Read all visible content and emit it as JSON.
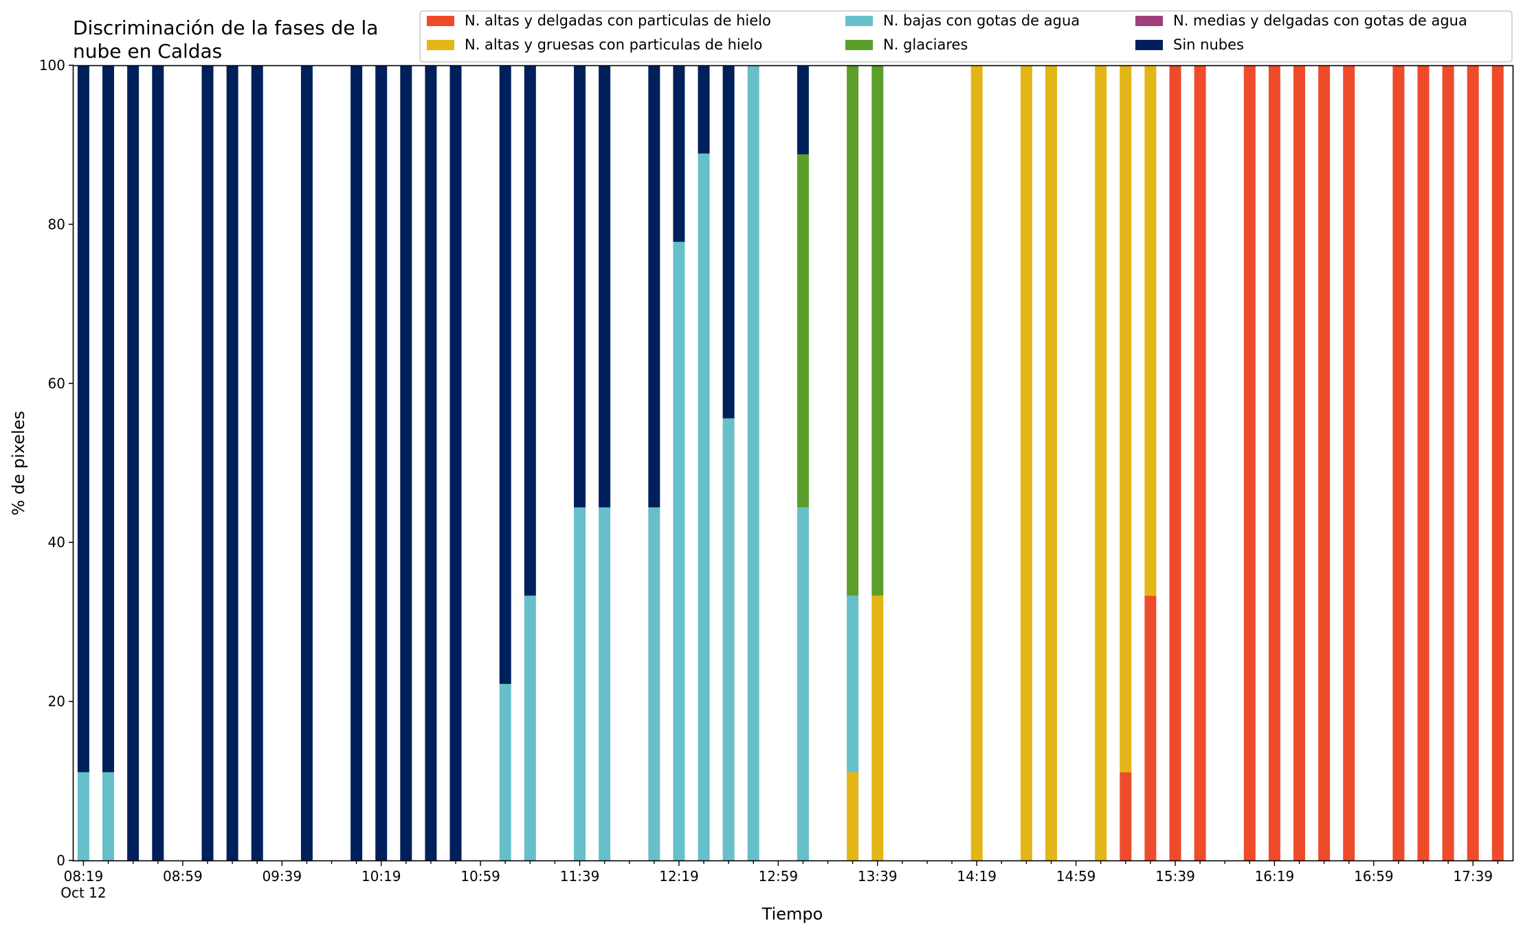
{
  "chart_data": {
    "type": "bar",
    "stacked": true,
    "title_lines": [
      "Discriminación de la fases de la",
      "nube en Caldas"
    ],
    "xlabel": "Tiempo",
    "ylabel": "% de pixeles",
    "ylim": [
      0,
      100
    ],
    "yticks": [
      "0",
      "20",
      "40",
      "60",
      "80",
      "100"
    ],
    "x_range": [
      "08:15",
      "17:55"
    ],
    "xtick_times": [
      "08:19",
      "08:59",
      "09:39",
      "10:19",
      "10:59",
      "11:39",
      "12:19",
      "12:59",
      "13:39",
      "14:19",
      "14:59",
      "15:39",
      "16:19",
      "16:59",
      "17:39"
    ],
    "xtick_date": "Oct 12",
    "grid": false,
    "legend_position": "top-right",
    "series": [
      {
        "key": "altas_delgadas",
        "name": "N. altas y delgadas con particulas de hielo",
        "color": "#ee4b2b"
      },
      {
        "key": "altas_gruesas",
        "name": "N. altas y gruesas con particulas de hielo",
        "color": "#e3b617"
      },
      {
        "key": "bajas",
        "name": "N. bajas con gotas de agua",
        "color": "#67bfca"
      },
      {
        "key": "glaciares",
        "name": "N. glaciares",
        "color": "#5b9e2a"
      },
      {
        "key": "medias",
        "name": "N. medias y delgadas con gotas de agua",
        "color": "#a0407a"
      },
      {
        "key": "sin_nubes",
        "name": "Sin nubes",
        "color": "#00205b"
      }
    ],
    "bars": [
      {
        "time": "08:19",
        "altas_delgadas": 0,
        "altas_gruesas": 0,
        "bajas": 11.1,
        "glaciares": 0,
        "medias": 0,
        "sin_nubes": 88.9
      },
      {
        "time": "08:29",
        "altas_delgadas": 0,
        "altas_gruesas": 0,
        "bajas": 11.1,
        "glaciares": 0,
        "medias": 0,
        "sin_nubes": 88.9
      },
      {
        "time": "08:39",
        "altas_delgadas": 0,
        "altas_gruesas": 0,
        "bajas": 0,
        "glaciares": 0,
        "medias": 0,
        "sin_nubes": 100
      },
      {
        "time": "08:49",
        "altas_delgadas": 0,
        "altas_gruesas": 0,
        "bajas": 0,
        "glaciares": 0,
        "medias": 0,
        "sin_nubes": 100
      },
      {
        "time": "09:09",
        "altas_delgadas": 0,
        "altas_gruesas": 0,
        "bajas": 0,
        "glaciares": 0,
        "medias": 0,
        "sin_nubes": 100
      },
      {
        "time": "09:19",
        "altas_delgadas": 0,
        "altas_gruesas": 0,
        "bajas": 0,
        "glaciares": 0,
        "medias": 0,
        "sin_nubes": 100
      },
      {
        "time": "09:29",
        "altas_delgadas": 0,
        "altas_gruesas": 0,
        "bajas": 0,
        "glaciares": 0,
        "medias": 0,
        "sin_nubes": 100
      },
      {
        "time": "09:49",
        "altas_delgadas": 0,
        "altas_gruesas": 0,
        "bajas": 0,
        "glaciares": 0,
        "medias": 0,
        "sin_nubes": 100
      },
      {
        "time": "10:09",
        "altas_delgadas": 0,
        "altas_gruesas": 0,
        "bajas": 0,
        "glaciares": 0,
        "medias": 0,
        "sin_nubes": 100
      },
      {
        "time": "10:19",
        "altas_delgadas": 0,
        "altas_gruesas": 0,
        "bajas": 0,
        "glaciares": 0,
        "medias": 0,
        "sin_nubes": 100
      },
      {
        "time": "10:29",
        "altas_delgadas": 0,
        "altas_gruesas": 0,
        "bajas": 0,
        "glaciares": 0,
        "medias": 0,
        "sin_nubes": 100
      },
      {
        "time": "10:39",
        "altas_delgadas": 0,
        "altas_gruesas": 0,
        "bajas": 0,
        "glaciares": 0,
        "medias": 0,
        "sin_nubes": 100
      },
      {
        "time": "10:49",
        "altas_delgadas": 0,
        "altas_gruesas": 0,
        "bajas": 0,
        "glaciares": 0,
        "medias": 0,
        "sin_nubes": 100
      },
      {
        "time": "11:09",
        "altas_delgadas": 0,
        "altas_gruesas": 0,
        "bajas": 22.2,
        "glaciares": 0,
        "medias": 0,
        "sin_nubes": 77.8
      },
      {
        "time": "11:19",
        "altas_delgadas": 0,
        "altas_gruesas": 0,
        "bajas": 33.3,
        "glaciares": 0,
        "medias": 0,
        "sin_nubes": 66.7
      },
      {
        "time": "11:39",
        "altas_delgadas": 0,
        "altas_gruesas": 0,
        "bajas": 44.4,
        "glaciares": 0,
        "medias": 0,
        "sin_nubes": 55.6
      },
      {
        "time": "11:49",
        "altas_delgadas": 0,
        "altas_gruesas": 0,
        "bajas": 44.4,
        "glaciares": 0,
        "medias": 0,
        "sin_nubes": 55.6
      },
      {
        "time": "12:09",
        "altas_delgadas": 0,
        "altas_gruesas": 0,
        "bajas": 44.4,
        "glaciares": 0,
        "medias": 0,
        "sin_nubes": 55.6
      },
      {
        "time": "12:19",
        "altas_delgadas": 0,
        "altas_gruesas": 0,
        "bajas": 77.8,
        "glaciares": 0,
        "medias": 0,
        "sin_nubes": 22.2
      },
      {
        "time": "12:29",
        "altas_delgadas": 0,
        "altas_gruesas": 0,
        "bajas": 88.9,
        "glaciares": 0,
        "medias": 0,
        "sin_nubes": 11.1
      },
      {
        "time": "12:39",
        "altas_delgadas": 0,
        "altas_gruesas": 0,
        "bajas": 55.6,
        "glaciares": 0,
        "medias": 0,
        "sin_nubes": 44.4
      },
      {
        "time": "12:49",
        "altas_delgadas": 0,
        "altas_gruesas": 0,
        "bajas": 100,
        "glaciares": 0,
        "medias": 0,
        "sin_nubes": 0
      },
      {
        "time": "13:09",
        "altas_delgadas": 0,
        "altas_gruesas": 0,
        "bajas": 44.4,
        "glaciares": 44.4,
        "medias": 0,
        "sin_nubes": 11.1
      },
      {
        "time": "13:29",
        "altas_delgadas": 0,
        "altas_gruesas": 11.1,
        "bajas": 22.2,
        "glaciares": 66.7,
        "medias": 0,
        "sin_nubes": 0
      },
      {
        "time": "13:39",
        "altas_delgadas": 0,
        "altas_gruesas": 33.3,
        "bajas": 0,
        "glaciares": 66.7,
        "medias": 0,
        "sin_nubes": 0
      },
      {
        "time": "14:19",
        "altas_delgadas": 0,
        "altas_gruesas": 100,
        "bajas": 0,
        "glaciares": 0,
        "medias": 0,
        "sin_nubes": 0
      },
      {
        "time": "14:39",
        "altas_delgadas": 0,
        "altas_gruesas": 100,
        "bajas": 0,
        "glaciares": 0,
        "medias": 0,
        "sin_nubes": 0
      },
      {
        "time": "14:49",
        "altas_delgadas": 0,
        "altas_gruesas": 100,
        "bajas": 0,
        "glaciares": 0,
        "medias": 0,
        "sin_nubes": 0
      },
      {
        "time": "15:09",
        "altas_delgadas": 0,
        "altas_gruesas": 100,
        "bajas": 0,
        "glaciares": 0,
        "medias": 0,
        "sin_nubes": 0
      },
      {
        "time": "15:19",
        "altas_delgadas": 11.1,
        "altas_gruesas": 88.9,
        "bajas": 0,
        "glaciares": 0,
        "medias": 0,
        "sin_nubes": 0
      },
      {
        "time": "15:29",
        "altas_delgadas": 33.3,
        "altas_gruesas": 66.7,
        "bajas": 0,
        "glaciares": 0,
        "medias": 0,
        "sin_nubes": 0
      },
      {
        "time": "15:39",
        "altas_delgadas": 100,
        "altas_gruesas": 0,
        "bajas": 0,
        "glaciares": 0,
        "medias": 0,
        "sin_nubes": 0
      },
      {
        "time": "15:49",
        "altas_delgadas": 100,
        "altas_gruesas": 0,
        "bajas": 0,
        "glaciares": 0,
        "medias": 0,
        "sin_nubes": 0
      },
      {
        "time": "16:09",
        "altas_delgadas": 100,
        "altas_gruesas": 0,
        "bajas": 0,
        "glaciares": 0,
        "medias": 0,
        "sin_nubes": 0
      },
      {
        "time": "16:19",
        "altas_delgadas": 100,
        "altas_gruesas": 0,
        "bajas": 0,
        "glaciares": 0,
        "medias": 0,
        "sin_nubes": 0
      },
      {
        "time": "16:29",
        "altas_delgadas": 100,
        "altas_gruesas": 0,
        "bajas": 0,
        "glaciares": 0,
        "medias": 0,
        "sin_nubes": 0
      },
      {
        "time": "16:39",
        "altas_delgadas": 100,
        "altas_gruesas": 0,
        "bajas": 0,
        "glaciares": 0,
        "medias": 0,
        "sin_nubes": 0
      },
      {
        "time": "16:49",
        "altas_delgadas": 100,
        "altas_gruesas": 0,
        "bajas": 0,
        "glaciares": 0,
        "medias": 0,
        "sin_nubes": 0
      },
      {
        "time": "17:09",
        "altas_delgadas": 100,
        "altas_gruesas": 0,
        "bajas": 0,
        "glaciares": 0,
        "medias": 0,
        "sin_nubes": 0
      },
      {
        "time": "17:19",
        "altas_delgadas": 100,
        "altas_gruesas": 0,
        "bajas": 0,
        "glaciares": 0,
        "medias": 0,
        "sin_nubes": 0
      },
      {
        "time": "17:29",
        "altas_delgadas": 100,
        "altas_gruesas": 0,
        "bajas": 0,
        "glaciares": 0,
        "medias": 0,
        "sin_nubes": 0
      },
      {
        "time": "17:39",
        "altas_delgadas": 100,
        "altas_gruesas": 0,
        "bajas": 0,
        "glaciares": 0,
        "medias": 0,
        "sin_nubes": 0
      },
      {
        "time": "17:49",
        "altas_delgadas": 100,
        "altas_gruesas": 0,
        "bajas": 0,
        "glaciares": 0,
        "medias": 0,
        "sin_nubes": 0
      }
    ]
  }
}
